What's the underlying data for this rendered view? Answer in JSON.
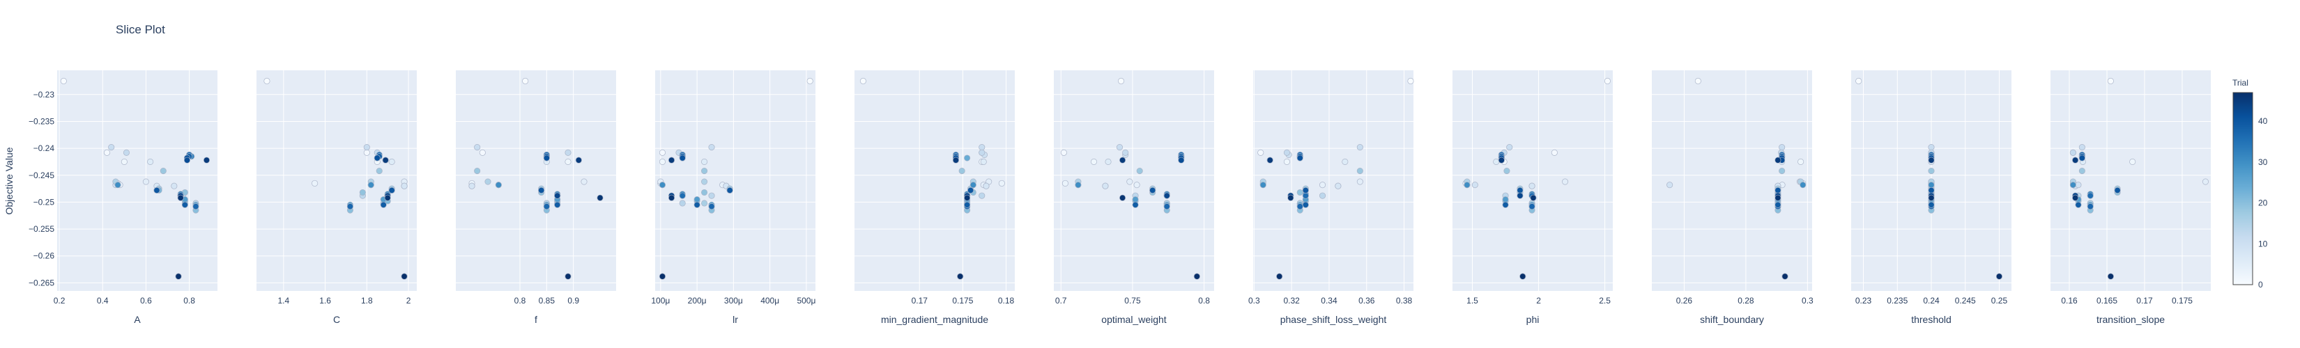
{
  "title": "Slice Plot",
  "y_axis_label": "Objective Value",
  "colorbar": {
    "title": "Trial",
    "ticks": [
      0,
      10,
      20,
      30,
      40
    ],
    "range": [
      0,
      47
    ],
    "colorscale": [
      "#f7fbff",
      "#deebf7",
      "#c6dbef",
      "#9ecae1",
      "#6baed6",
      "#4292c6",
      "#2171b5",
      "#08519c",
      "#08306b"
    ]
  },
  "colors": {
    "plot_bg": "#e5ecf6",
    "grid": "#ffffff",
    "text": "#2a3f5f",
    "marker_outline": "#aab4c8"
  },
  "chart_data": {
    "type": "scatter",
    "ylim": [
      -0.2665,
      -0.2255
    ],
    "yticks": [
      -0.23,
      -0.235,
      -0.24,
      -0.245,
      -0.25,
      -0.255,
      -0.26,
      -0.265
    ],
    "trial_objective_values": [
      -0.2275,
      -0.2408,
      -0.2425,
      -0.2465,
      -0.2468,
      -0.2462,
      -0.2425,
      -0.247,
      -0.247,
      -0.2468,
      -0.2412,
      -0.2398,
      -0.2408,
      -0.2488,
      -0.2502,
      -0.2462,
      -0.2502,
      -0.2475,
      -0.2442,
      -0.2482,
      -0.2515,
      -0.2498,
      -0.2478,
      -0.2415,
      -0.2418,
      -0.2488,
      -0.2505,
      -0.2495,
      -0.2478,
      -0.2415,
      -0.2468,
      -0.2485,
      -0.2415,
      -0.2508,
      -0.2478,
      -0.2412,
      -0.2488,
      -0.2508,
      -0.2415,
      -0.2505,
      -0.2478,
      -0.2418,
      -0.2422,
      -0.2488,
      -0.2638,
      -0.2422,
      -0.2492,
      -0.2638
    ],
    "panels": [
      {
        "xlabel": "A",
        "xlim": [
          0.19,
          0.93
        ],
        "xticks": [
          {
            "v": 0.2,
            "l": "0.2"
          },
          {
            "v": 0.4,
            "l": "0.4"
          },
          {
            "v": 0.6,
            "l": "0.6"
          },
          {
            "v": 0.8,
            "l": "0.8"
          }
        ],
        "x": [
          0.22,
          0.42,
          0.5,
          0.47,
          0.48,
          0.6,
          0.62,
          0.65,
          0.73,
          0.46,
          0.8,
          0.44,
          0.51,
          0.77,
          0.83,
          0.46,
          0.78,
          0.66,
          0.68,
          0.78,
          0.83,
          0.78,
          0.66,
          0.81,
          0.79,
          0.76,
          0.83,
          0.78,
          0.65,
          0.8,
          0.47,
          0.76,
          0.81,
          0.83,
          0.65,
          0.8,
          0.76,
          0.83,
          0.8,
          0.78,
          0.65,
          0.79,
          0.79,
          0.76,
          0.75,
          0.88,
          0.76,
          0.75
        ]
      },
      {
        "xlabel": "C",
        "xlim": [
          1.27,
          2.04
        ],
        "xticks": [
          {
            "v": 1.4,
            "l": "1.4"
          },
          {
            "v": 1.6,
            "l": "1.6"
          },
          {
            "v": 1.8,
            "l": "1.8"
          },
          {
            "v": 2,
            "l": "2"
          }
        ],
        "x": [
          1.32,
          1.8,
          1.85,
          1.55,
          1.82,
          1.98,
          1.92,
          1.98,
          1.98,
          1.82,
          1.86,
          1.8,
          1.85,
          1.78,
          1.88,
          1.82,
          1.88,
          1.92,
          1.86,
          1.78,
          1.72,
          1.9,
          1.92,
          1.86,
          1.85,
          1.9,
          1.72,
          1.88,
          1.92,
          1.86,
          1.82,
          1.9,
          1.86,
          1.72,
          1.92,
          1.86,
          1.9,
          1.72,
          1.86,
          1.88,
          1.92,
          1.85,
          1.89,
          1.9,
          1.98,
          1.89,
          1.9,
          1.98
        ]
      },
      {
        "xlabel": "f",
        "xlim": [
          0.68,
          0.98
        ],
        "xticks": [
          {
            "v": 0.8,
            "l": "0.8"
          },
          {
            "v": 0.85,
            "l": "0.85"
          },
          {
            "v": 0.9,
            "l": "0.9"
          }
        ],
        "x": [
          0.81,
          0.73,
          0.89,
          0.71,
          0.76,
          0.92,
          0.85,
          0.71,
          0.71,
          0.76,
          0.85,
          0.72,
          0.89,
          0.87,
          0.85,
          0.74,
          0.87,
          0.84,
          0.72,
          0.84,
          0.85,
          0.87,
          0.84,
          0.85,
          0.85,
          0.87,
          0.85,
          0.87,
          0.84,
          0.85,
          0.76,
          0.87,
          0.85,
          0.85,
          0.84,
          0.85,
          0.87,
          0.85,
          0.85,
          0.87,
          0.84,
          0.85,
          0.91,
          0.87,
          0.89,
          0.91,
          0.95,
          0.89
        ]
      },
      {
        "xlabel": "lr",
        "xlim": [
          8.5e-05,
          0.000525
        ],
        "xticks": [
          {
            "v": 0.0001,
            "l": "100μ"
          },
          {
            "v": 0.0002,
            "l": "200μ"
          },
          {
            "v": 0.0003,
            "l": "300μ"
          },
          {
            "v": 0.0004,
            "l": "400μ"
          },
          {
            "v": 0.0005,
            "l": "500μ"
          }
        ],
        "x": [
          0.00051,
          0.000105,
          0.000105,
          0.0001,
          0.00027,
          0.0001,
          0.00022,
          0.00028,
          0.00028,
          0.000105,
          0.00016,
          0.00024,
          0.00015,
          0.00024,
          0.00016,
          0.00022,
          0.00022,
          0.00029,
          0.00022,
          0.00022,
          0.00024,
          0.0002,
          0.00029,
          0.00016,
          0.00016,
          0.00016,
          0.00024,
          0.0002,
          0.00029,
          0.00016,
          0.000105,
          0.00016,
          0.00016,
          0.00024,
          0.00029,
          0.00016,
          0.00016,
          0.00024,
          0.00016,
          0.0002,
          0.00029,
          0.00016,
          0.00013,
          0.00013,
          0.000105,
          0.00013,
          0.00013,
          0.000105
        ]
      },
      {
        "xlabel": "min_gradient_magnitude",
        "xlim": [
          0.1625,
          0.181
        ],
        "xticks": [
          {
            "v": 0.17,
            "l": "0.17"
          },
          {
            "v": 0.175,
            "l": "0.175"
          },
          {
            "v": 0.18,
            "l": "0.18"
          }
        ],
        "x": [
          0.1635,
          0.1772,
          0.1772,
          0.1795,
          0.1774,
          0.178,
          0.1774,
          0.1777,
          0.1777,
          0.1762,
          0.1775,
          0.1772,
          0.1772,
          0.1772,
          0.1755,
          0.1762,
          0.1755,
          0.1759,
          0.1749,
          0.1762,
          0.1755,
          0.1755,
          0.1759,
          0.1742,
          0.1755,
          0.1755,
          0.1755,
          0.1755,
          0.1759,
          0.1742,
          0.1762,
          0.1755,
          0.1742,
          0.1755,
          0.1759,
          0.1742,
          0.1755,
          0.1755,
          0.1742,
          0.1755,
          0.1759,
          0.1742,
          0.1742,
          0.1755,
          0.1747,
          0.1742,
          0.1755,
          0.1747
        ]
      },
      {
        "xlabel": "optimal_weight",
        "xlim": [
          0.695,
          0.807
        ],
        "xticks": [
          {
            "v": 0.7,
            "l": "0.7"
          },
          {
            "v": 0.75,
            "l": "0.75"
          },
          {
            "v": 0.8,
            "l": "0.8"
          }
        ],
        "x": [
          0.742,
          0.702,
          0.723,
          0.703,
          0.753,
          0.748,
          0.733,
          0.731,
          0.731,
          0.712,
          0.745,
          0.741,
          0.745,
          0.752,
          0.774,
          0.712,
          0.774,
          0.764,
          0.755,
          0.764,
          0.774,
          0.752,
          0.764,
          0.784,
          0.784,
          0.774,
          0.774,
          0.752,
          0.764,
          0.784,
          0.712,
          0.774,
          0.784,
          0.774,
          0.764,
          0.784,
          0.774,
          0.774,
          0.784,
          0.752,
          0.764,
          0.784,
          0.784,
          0.774,
          0.795,
          0.743,
          0.743,
          0.795
        ]
      },
      {
        "xlabel": "phase_shift_loss_weight",
        "xlim": [
          0.2995,
          0.385
        ],
        "xticks": [
          {
            "v": 0.3,
            "l": "0.3"
          },
          {
            "v": 0.32,
            "l": "0.32"
          },
          {
            "v": 0.34,
            "l": "0.34"
          },
          {
            "v": 0.36,
            "l": "0.36"
          },
          {
            "v": 0.38,
            "l": "0.38"
          }
        ],
        "x": [
          0.3835,
          0.3035,
          0.3175,
          0.3048,
          0.3365,
          0.3565,
          0.3485,
          0.3448,
          0.3448,
          0.3048,
          0.3185,
          0.3565,
          0.3175,
          0.3365,
          0.3245,
          0.3048,
          0.3245,
          0.3275,
          0.3565,
          0.3245,
          0.3245,
          0.3275,
          0.3275,
          0.3245,
          0.3245,
          0.3275,
          0.3245,
          0.3275,
          0.3275,
          0.3245,
          0.3048,
          0.3275,
          0.3245,
          0.3245,
          0.3275,
          0.3245,
          0.3275,
          0.3245,
          0.3245,
          0.3275,
          0.3275,
          0.3245,
          0.3085,
          0.3195,
          0.3135,
          0.3085,
          0.3195,
          0.3135
        ]
      },
      {
        "xlabel": "phi",
        "xlim": [
          1.35,
          2.56
        ],
        "xticks": [
          {
            "v": 1.5,
            "l": "1.5"
          },
          {
            "v": 2,
            "l": "2"
          },
          {
            "v": 2.5,
            "l": "2.5"
          }
        ],
        "x": [
          2.52,
          2.12,
          1.74,
          1.45,
          1.46,
          2.2,
          1.68,
          1.95,
          1.95,
          1.52,
          1.72,
          1.78,
          1.74,
          1.75,
          1.95,
          1.46,
          1.95,
          1.86,
          1.76,
          1.86,
          1.95,
          1.75,
          1.86,
          1.72,
          1.72,
          1.95,
          1.95,
          1.75,
          1.86,
          1.72,
          1.46,
          1.95,
          1.72,
          1.95,
          1.86,
          1.72,
          1.95,
          1.95,
          1.72,
          1.75,
          1.86,
          1.72,
          1.72,
          1.86,
          1.88,
          1.72,
          1.96,
          1.88
        ]
      },
      {
        "xlabel": "shift_boundary",
        "xlim": [
          0.2495,
          0.3015
        ],
        "xticks": [
          {
            "v": 0.26,
            "l": "0.26"
          },
          {
            "v": 0.28,
            "l": "0.28"
          },
          {
            "v": 0.3,
            "l": "0.3"
          }
        ],
        "x": [
          0.2645,
          0.2915,
          0.2978,
          0.2985,
          0.2918,
          0.2975,
          0.2917,
          0.2904,
          0.2904,
          0.2553,
          0.2917,
          0.2917,
          0.2915,
          0.2904,
          0.2904,
          0.2978,
          0.2904,
          0.2904,
          0.2917,
          0.2904,
          0.2904,
          0.2904,
          0.2904,
          0.2917,
          0.2917,
          0.2904,
          0.2904,
          0.2904,
          0.2904,
          0.2917,
          0.2985,
          0.2904,
          0.2917,
          0.2904,
          0.2904,
          0.2917,
          0.2904,
          0.2904,
          0.2917,
          0.2904,
          0.2904,
          0.2917,
          0.2917,
          0.2904,
          0.2927,
          0.2904,
          0.2904,
          0.2927
        ]
      },
      {
        "xlabel": "threshold",
        "xlim": [
          0.2282,
          0.2518
        ],
        "xticks": [
          {
            "v": 0.23,
            "l": "0.23"
          },
          {
            "v": 0.235,
            "l": "0.235"
          },
          {
            "v": 0.24,
            "l": "0.24"
          },
          {
            "v": 0.245,
            "l": "0.245"
          },
          {
            "v": 0.25,
            "l": "0.25"
          }
        ],
        "x": [
          0.2293,
          0.24,
          0.24,
          0.24,
          0.24,
          0.24,
          0.24,
          0.24,
          0.24,
          0.24,
          0.24,
          0.24,
          0.24,
          0.24,
          0.24,
          0.24,
          0.24,
          0.24,
          0.24,
          0.24,
          0.24,
          0.24,
          0.24,
          0.24,
          0.24,
          0.24,
          0.24,
          0.24,
          0.24,
          0.24,
          0.24,
          0.24,
          0.24,
          0.24,
          0.24,
          0.24,
          0.24,
          0.24,
          0.24,
          0.24,
          0.24,
          0.24,
          0.24,
          0.24,
          0.25,
          0.24,
          0.24,
          0.25
        ]
      },
      {
        "xlabel": "transition_slope",
        "xlim": [
          0.1575,
          0.1788
        ],
        "xticks": [
          {
            "v": 0.16,
            "l": "0.16"
          },
          {
            "v": 0.165,
            "l": "0.165"
          },
          {
            "v": 0.17,
            "l": "0.17"
          },
          {
            "v": 0.175,
            "l": "0.175"
          }
        ],
        "x": [
          0.1655,
          0.1605,
          0.1684,
          0.1605,
          0.1605,
          0.1781,
          0.1618,
          0.1608,
          0.1608,
          0.1612,
          0.1617,
          0.1617,
          0.1605,
          0.1612,
          0.1628,
          0.1605,
          0.1628,
          0.1664,
          0.1617,
          0.1664,
          0.1628,
          0.1612,
          0.1664,
          0.1617,
          0.1617,
          0.1628,
          0.1628,
          0.1612,
          0.1664,
          0.1617,
          0.1605,
          0.1628,
          0.1617,
          0.1628,
          0.1664,
          0.1617,
          0.1628,
          0.1628,
          0.1617,
          0.1612,
          0.1664,
          0.1617,
          0.1608,
          0.1608,
          0.1655,
          0.1608,
          0.1608,
          0.1655
        ]
      }
    ]
  }
}
